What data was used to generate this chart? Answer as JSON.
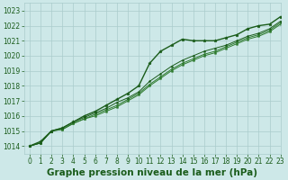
{
  "title": "Graphe pression niveau de la mer (hPa)",
  "bg_color": "#cde8e8",
  "grid_color": "#aacccc",
  "line_color_dark": "#1a5c1a",
  "line_color_mid": "#2d7a2d",
  "xlim": [
    -0.5,
    23
  ],
  "ylim": [
    1013.5,
    1023.5
  ],
  "yticks": [
    1014,
    1015,
    1016,
    1017,
    1018,
    1019,
    1020,
    1021,
    1022,
    1023
  ],
  "xticks": [
    0,
    1,
    2,
    3,
    4,
    5,
    6,
    7,
    8,
    9,
    10,
    11,
    12,
    13,
    14,
    15,
    16,
    17,
    18,
    19,
    20,
    21,
    22,
    23
  ],
  "line1": [
    1014.0,
    1014.3,
    1015.0,
    1015.2,
    1015.6,
    1016.0,
    1016.3,
    1016.7,
    1017.1,
    1017.5,
    1018.0,
    1019.5,
    1020.3,
    1020.7,
    1021.1,
    1021.0,
    1021.0,
    1021.0,
    1021.2,
    1021.4,
    1021.8,
    1022.0,
    1022.1,
    1022.6
  ],
  "line2": [
    1014.0,
    1014.2,
    1015.0,
    1015.2,
    1015.6,
    1015.9,
    1016.2,
    1016.5,
    1016.9,
    1017.2,
    1017.6,
    1018.3,
    1018.8,
    1019.3,
    1019.7,
    1020.0,
    1020.3,
    1020.5,
    1020.7,
    1021.0,
    1021.3,
    1021.5,
    1021.8,
    1022.3
  ],
  "line3": [
    1014.0,
    1014.2,
    1015.0,
    1015.1,
    1015.5,
    1015.8,
    1016.1,
    1016.4,
    1016.7,
    1017.1,
    1017.5,
    1018.1,
    1018.6,
    1019.1,
    1019.5,
    1019.8,
    1020.1,
    1020.3,
    1020.6,
    1020.9,
    1021.2,
    1021.4,
    1021.7,
    1022.2
  ],
  "line4": [
    1014.0,
    1014.2,
    1015.0,
    1015.1,
    1015.5,
    1015.8,
    1016.0,
    1016.3,
    1016.6,
    1017.0,
    1017.4,
    1018.0,
    1018.5,
    1019.0,
    1019.4,
    1019.7,
    1020.0,
    1020.2,
    1020.5,
    1020.8,
    1021.1,
    1021.3,
    1021.6,
    1022.1
  ],
  "tick_fontsize": 5.5,
  "title_fontsize": 7.5
}
